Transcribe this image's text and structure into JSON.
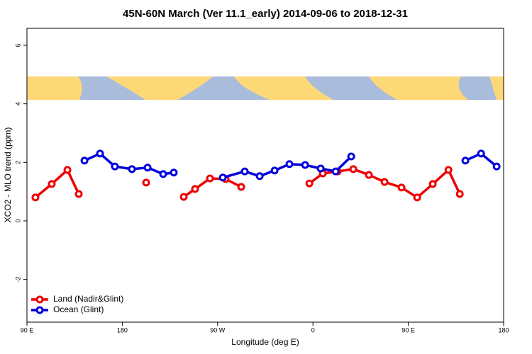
{
  "chart_data": {
    "type": "line",
    "title": "45N-60N March (Ver 11.1_early)   2014-09-06 to 2018-12-31",
    "x_label": "Longitude (deg E)",
    "y_label": "XCO2 - MLO trend (ppm)",
    "xlim": [
      90,
      540
    ],
    "xticks": [
      {
        "value": 90,
        "label": "90 E"
      },
      180,
      {
        "value": 270,
        "label": "90 W"
      },
      {
        "value": 360,
        "label": "0"
      },
      {
        "value": 450,
        "label": "90 E"
      },
      {
        "value": 540,
        "label": "180"
      }
    ],
    "ylim": [
      -3.46,
      6.58
    ],
    "yticks": [
      -2,
      0,
      2,
      4,
      6
    ],
    "legend": "bottom-left",
    "series": [
      {
        "name": "Land (Nadir&Glint)",
        "color": "#ee0000",
        "x": [
          98,
          113.4,
          128.2,
          138.9,
          null,
          202.5,
          null,
          238,
          248.7,
          262.8,
          277.5,
          292.3,
          null,
          356.6,
          369.3,
          383.4,
          398.1,
          412.8,
          427.6,
          443.6,
          458.4,
          473.1,
          487.9,
          498.6
        ],
        "values": [
          0.8,
          1.26,
          1.74,
          0.92,
          null,
          1.31,
          null,
          0.82,
          1.09,
          1.45,
          1.43,
          1.16,
          null,
          1.28,
          1.62,
          1.69,
          1.77,
          1.57,
          1.33,
          1.14,
          0.8,
          1.26,
          1.74,
          0.92
        ]
      },
      {
        "name": "Ocean (Glint)",
        "color": "#0000dd",
        "x": [
          144.3,
          159,
          173,
          189.1,
          203.9,
          218.6,
          228.6,
          null,
          274.9,
          295.6,
          309.7,
          323.8,
          337.8,
          352.6,
          367.3,
          381.4,
          396.1,
          null,
          503.9,
          518.7,
          533.4
        ],
        "values": [
          2.06,
          2.3,
          1.86,
          1.77,
          1.82,
          1.6,
          1.65,
          null,
          1.48,
          1.69,
          1.53,
          1.72,
          1.94,
          1.91,
          1.79,
          1.69,
          2.2,
          null,
          2.06,
          2.3,
          1.86
        ]
      }
    ]
  }
}
